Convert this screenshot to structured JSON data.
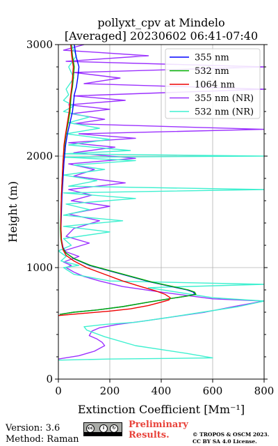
{
  "chart_data": {
    "type": "line",
    "title_line1": "pollyxt_cpv at Mindelo",
    "title_line2": "[Averaged] 20230602 06:41-07:40",
    "xlabel": "Extinction Coefficient [Mm⁻¹]",
    "ylabel": "Height (m)",
    "xlim": [
      0,
      800
    ],
    "ylim": [
      0,
      3000
    ],
    "x_ticks": [
      "0",
      "200",
      "400",
      "600",
      "800"
    ],
    "y_ticks": [
      "0",
      "1000",
      "2000",
      "3000"
    ],
    "grid": true,
    "legend_position": "top-right",
    "series": [
      {
        "name": "355 nm",
        "color": "#0000ff",
        "points": [
          [
            5,
            580
          ],
          [
            60,
            600
          ],
          [
            150,
            620
          ],
          [
            250,
            650
          ],
          [
            350,
            690
          ],
          [
            430,
            720
          ],
          [
            500,
            745
          ],
          [
            530,
            760
          ],
          [
            525,
            780
          ],
          [
            500,
            800
          ],
          [
            440,
            830
          ],
          [
            360,
            870
          ],
          [
            280,
            920
          ],
          [
            200,
            970
          ],
          [
            120,
            1020
          ],
          [
            60,
            1080
          ],
          [
            30,
            1130
          ],
          [
            18,
            1180
          ],
          [
            12,
            1250
          ],
          [
            10,
            1350
          ],
          [
            12,
            1500
          ],
          [
            14,
            1650
          ],
          [
            18,
            1800
          ],
          [
            22,
            1950
          ],
          [
            28,
            2100
          ],
          [
            35,
            2200
          ],
          [
            45,
            2300
          ],
          [
            55,
            2400
          ],
          [
            60,
            2500
          ],
          [
            62,
            2550
          ],
          [
            70,
            2620
          ],
          [
            75,
            2700
          ],
          [
            80,
            2800
          ],
          [
            68,
            2900
          ],
          [
            62,
            3000
          ]
        ]
      },
      {
        "name": "532 nm",
        "color": "#00b000",
        "points": [
          [
            5,
            580
          ],
          [
            60,
            600
          ],
          [
            150,
            620
          ],
          [
            250,
            650
          ],
          [
            350,
            690
          ],
          [
            430,
            720
          ],
          [
            500,
            745
          ],
          [
            535,
            760
          ],
          [
            530,
            780
          ],
          [
            505,
            800
          ],
          [
            445,
            830
          ],
          [
            365,
            870
          ],
          [
            285,
            920
          ],
          [
            205,
            970
          ],
          [
            125,
            1020
          ],
          [
            62,
            1080
          ],
          [
            30,
            1130
          ],
          [
            16,
            1180
          ],
          [
            10,
            1250
          ],
          [
            8,
            1350
          ],
          [
            10,
            1500
          ],
          [
            12,
            1650
          ],
          [
            15,
            1800
          ],
          [
            18,
            1950
          ],
          [
            24,
            2100
          ],
          [
            30,
            2200
          ],
          [
            38,
            2300
          ],
          [
            45,
            2400
          ],
          [
            48,
            2500
          ],
          [
            50,
            2550
          ],
          [
            55,
            2620
          ],
          [
            58,
            2700
          ],
          [
            62,
            2800
          ],
          [
            55,
            2900
          ],
          [
            50,
            3000
          ]
        ]
      },
      {
        "name": "1064 nm",
        "color": "#ee0000",
        "points": [
          [
            0,
            570
          ],
          [
            100,
            590
          ],
          [
            200,
            610
          ],
          [
            280,
            630
          ],
          [
            350,
            660
          ],
          [
            400,
            690
          ],
          [
            430,
            710
          ],
          [
            435,
            730
          ],
          [
            415,
            760
          ],
          [
            380,
            790
          ],
          [
            320,
            830
          ],
          [
            250,
            880
          ],
          [
            180,
            940
          ],
          [
            110,
            1000
          ],
          [
            60,
            1060
          ],
          [
            30,
            1110
          ],
          [
            18,
            1160
          ],
          [
            12,
            1250
          ],
          [
            10,
            1350
          ],
          [
            10,
            1500
          ],
          [
            12,
            1650
          ],
          [
            15,
            1800
          ],
          [
            18,
            1950
          ],
          [
            22,
            2100
          ],
          [
            28,
            2200
          ],
          [
            35,
            2300
          ],
          [
            42,
            2400
          ],
          [
            45,
            2500
          ],
          [
            48,
            2550
          ],
          [
            52,
            2620
          ],
          [
            55,
            2700
          ],
          [
            58,
            2800
          ],
          [
            52,
            2900
          ],
          [
            48,
            3000
          ]
        ]
      },
      {
        "name": "355 nm (NR)",
        "color": "#9b30ff",
        "points": [
          [
            0,
            180
          ],
          [
            80,
            210
          ],
          [
            140,
            250
          ],
          [
            180,
            300
          ],
          [
            170,
            330
          ],
          [
            150,
            360
          ],
          [
            120,
            390
          ],
          [
            130,
            430
          ],
          [
            160,
            460
          ],
          [
            230,
            490
          ],
          [
            330,
            520
          ],
          [
            450,
            560
          ],
          [
            570,
            600
          ],
          [
            680,
            650
          ],
          [
            800,
            700
          ],
          [
            600,
            720
          ],
          [
            400,
            780
          ],
          [
            250,
            830
          ],
          [
            160,
            880
          ],
          [
            100,
            920
          ],
          [
            60,
            960
          ],
          [
            30,
            1000
          ],
          [
            50,
            1020
          ],
          [
            20,
            1050
          ],
          [
            80,
            1100
          ],
          [
            20,
            1150
          ],
          [
            120,
            1220
          ],
          [
            30,
            1280
          ],
          [
            60,
            1350
          ],
          [
            160,
            1420
          ],
          [
            40,
            1480
          ],
          [
            200,
            1550
          ],
          [
            50,
            1600
          ],
          [
            130,
            1650
          ],
          [
            40,
            1700
          ],
          [
            260,
            1760
          ],
          [
            60,
            1820
          ],
          [
            140,
            1880
          ],
          [
            40,
            1930
          ],
          [
            300,
            1980
          ],
          [
            60,
            2030
          ],
          [
            220,
            2080
          ],
          [
            40,
            2120
          ],
          [
            300,
            2160
          ],
          [
            80,
            2200
          ],
          [
            800,
            2240
          ],
          [
            60,
            2290
          ],
          [
            180,
            2330
          ],
          [
            50,
            2380
          ],
          [
            200,
            2420
          ],
          [
            40,
            2460
          ],
          [
            260,
            2500
          ],
          [
            60,
            2540
          ],
          [
            800,
            2600
          ],
          [
            100,
            2650
          ],
          [
            240,
            2700
          ],
          [
            60,
            2750
          ],
          [
            800,
            2800
          ],
          [
            30,
            2850
          ],
          [
            350,
            2900
          ],
          [
            20,
            2950
          ],
          [
            100,
            3000
          ]
        ]
      },
      {
        "name": "532 nm (NR)",
        "color": "#3ff0d0",
        "points": [
          [
            0,
            170
          ],
          [
            200,
            180
          ],
          [
            600,
            190
          ],
          [
            500,
            230
          ],
          [
            300,
            300
          ],
          [
            180,
            380
          ],
          [
            110,
            440
          ],
          [
            100,
            470
          ],
          [
            180,
            490
          ],
          [
            300,
            510
          ],
          [
            420,
            550
          ],
          [
            560,
            600
          ],
          [
            700,
            650
          ],
          [
            800,
            700
          ],
          [
            600,
            730
          ],
          [
            350,
            820
          ],
          [
            800,
            850
          ],
          [
            200,
            880
          ],
          [
            60,
            940
          ],
          [
            20,
            1000
          ],
          [
            80,
            1020
          ],
          [
            10,
            1060
          ],
          [
            30,
            1100
          ],
          [
            0,
            1150
          ],
          [
            50,
            1200
          ],
          [
            20,
            1260
          ],
          [
            200,
            1320
          ],
          [
            20,
            1370
          ],
          [
            250,
            1420
          ],
          [
            20,
            1470
          ],
          [
            120,
            1520
          ],
          [
            30,
            1570
          ],
          [
            300,
            1620
          ],
          [
            20,
            1670
          ],
          [
            800,
            1700
          ],
          [
            40,
            1730
          ],
          [
            150,
            1780
          ],
          [
            20,
            1830
          ],
          [
            180,
            1880
          ],
          [
            60,
            1920
          ],
          [
            300,
            1960
          ],
          [
            20,
            1990
          ],
          [
            800,
            2000
          ],
          [
            20,
            2020
          ],
          [
            280,
            2050
          ],
          [
            40,
            2100
          ],
          [
            200,
            2150
          ],
          [
            30,
            2200
          ],
          [
            160,
            2250
          ],
          [
            40,
            2300
          ],
          [
            120,
            2350
          ],
          [
            20,
            2400
          ],
          [
            60,
            2450
          ],
          [
            20,
            2500
          ],
          [
            40,
            2550
          ],
          [
            30,
            2600
          ],
          [
            60,
            2700
          ],
          [
            40,
            2800
          ],
          [
            70,
            2900
          ],
          [
            50,
            3000
          ]
        ]
      }
    ]
  },
  "footer": {
    "version": "Version: 3.6",
    "method": "Method: Raman",
    "preliminary_line1": "Preliminary",
    "preliminary_line2": "Results.",
    "copyright_line1": "© TROPOS & OSCM 2023.",
    "copyright_line2": "CC BY SA 4.0 License.",
    "cc_badge_text": "BY SA"
  }
}
